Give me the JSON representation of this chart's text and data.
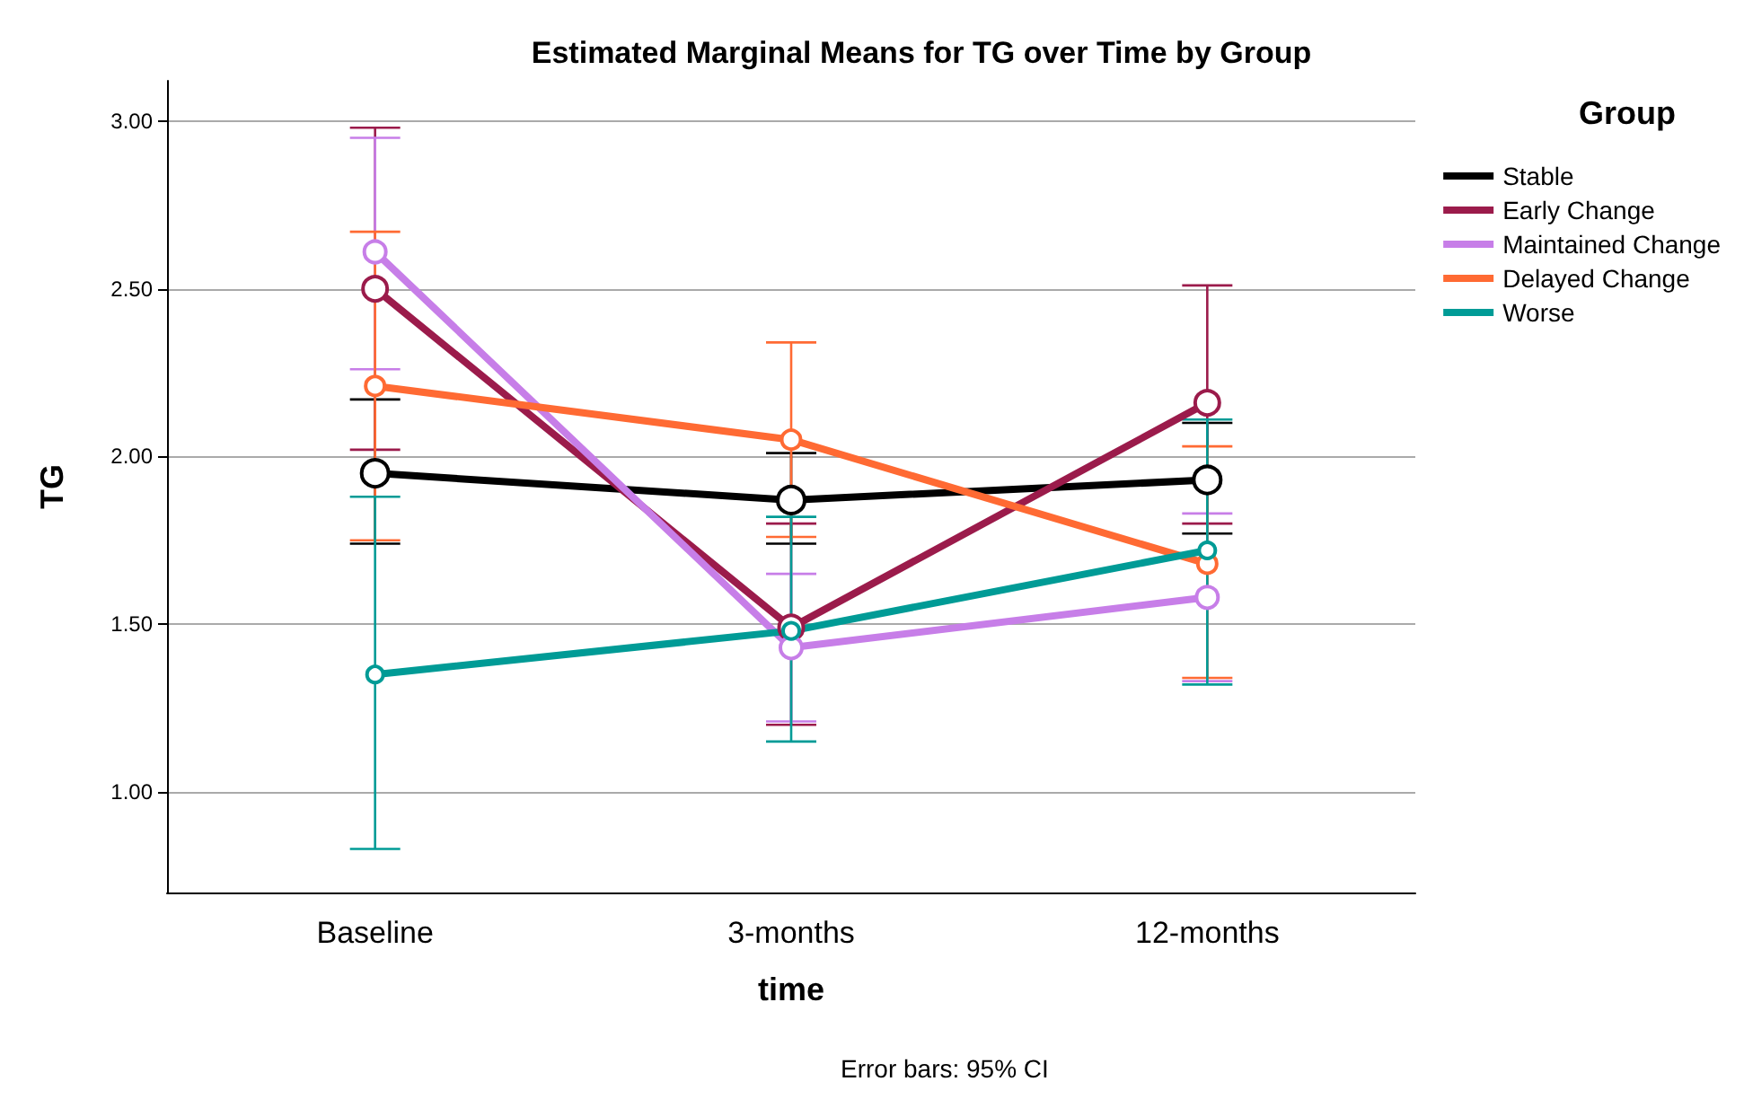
{
  "chart_data": {
    "type": "line",
    "title": "Estimated Marginal Means for TG over Time by Group",
    "xlabel": "time",
    "ylabel": "TG",
    "legend_title": "Group",
    "annotations": [
      "Error bars: 95% CI"
    ],
    "categories": [
      "Baseline",
      "3-months",
      "12-months"
    ],
    "series": [
      {
        "name": "Stable",
        "color": "#000000",
        "values": [
          1.95,
          1.87,
          1.93
        ],
        "errors": [
          [
            1.74,
            2.17
          ],
          [
            1.74,
            2.01
          ],
          [
            1.77,
            2.1
          ]
        ]
      },
      {
        "name": "Early Change",
        "color": "#9b1b4b",
        "values": [
          2.5,
          1.49,
          2.16
        ],
        "errors": [
          [
            2.02,
            2.98
          ],
          [
            1.2,
            1.8
          ],
          [
            1.8,
            2.51
          ]
        ]
      },
      {
        "name": "Maintained Change",
        "color": "#c77ee8",
        "values": [
          2.61,
          1.43,
          1.58
        ],
        "errors": [
          [
            2.26,
            2.95
          ],
          [
            1.21,
            1.65
          ],
          [
            1.33,
            1.83
          ]
        ]
      },
      {
        "name": "Delayed Change",
        "color": "#ff6a33",
        "values": [
          2.21,
          2.05,
          1.68
        ],
        "errors": [
          [
            1.75,
            2.67
          ],
          [
            1.76,
            2.34
          ],
          [
            1.34,
            2.03
          ]
        ]
      },
      {
        "name": "Worse",
        "color": "#009b96",
        "values": [
          1.35,
          1.48,
          1.72
        ],
        "errors": [
          [
            0.83,
            1.88
          ],
          [
            1.15,
            1.82
          ],
          [
            1.32,
            2.11
          ]
        ]
      }
    ],
    "ylim": [
      0.7,
      3.12
    ],
    "yticks": [
      {
        "value": 1,
        "label": "1.00"
      },
      {
        "value": 1.5,
        "label": "1.50"
      },
      {
        "value": 2,
        "label": "2.00"
      },
      {
        "value": 2.5,
        "label": "2.50"
      },
      {
        "value": 3,
        "label": "3.00"
      }
    ],
    "grid": "y",
    "legend": "top right",
    "marker": "circle",
    "line_style": "solid"
  }
}
